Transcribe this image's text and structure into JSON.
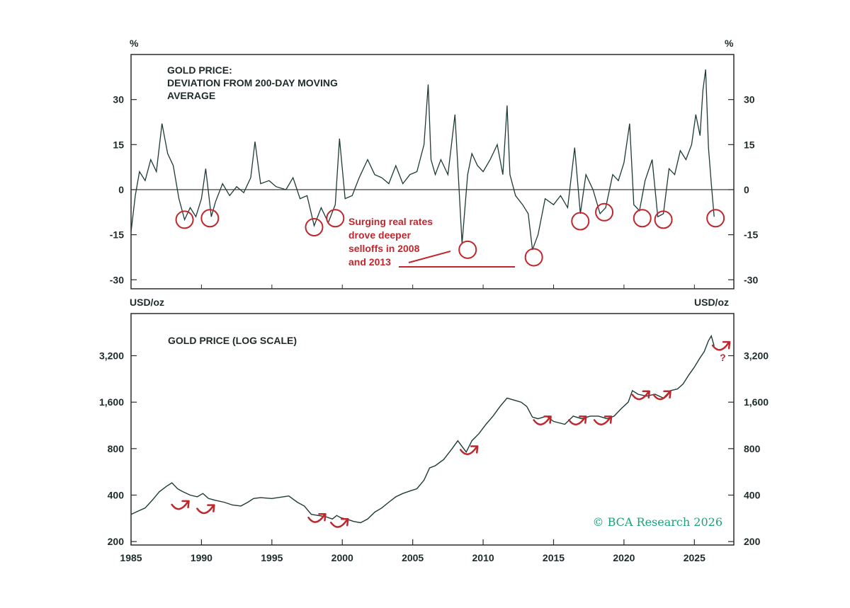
{
  "colors": {
    "line": "#1d3a36",
    "accent": "#c0272d",
    "credit": "#1aa37a",
    "axis": "#2b2b2b"
  },
  "chart_data": [
    {
      "type": "line",
      "title": "GOLD PRICE:\nDEVIATION FROM 200-DAY MOVING\nAVERAGE",
      "unit_left": "%",
      "unit_right": "%",
      "ylim": [
        -33,
        45
      ],
      "yticks": [
        30,
        15,
        0,
        -15,
        -30
      ],
      "ytick_labels": [
        "30",
        "15",
        "0",
        "-15",
        "-30"
      ],
      "zero_line": true,
      "x": [
        1985.0,
        1985.3,
        1985.6,
        1986.0,
        1986.4,
        1986.8,
        1987.2,
        1987.6,
        1988.0,
        1988.4,
        1988.8,
        1989.2,
        1989.6,
        1990.0,
        1990.3,
        1990.7,
        1991.0,
        1991.5,
        1992.0,
        1992.5,
        1993.0,
        1993.5,
        1993.8,
        1994.2,
        1994.8,
        1995.3,
        1996.0,
        1996.5,
        1997.0,
        1997.5,
        1998.0,
        1998.5,
        1999.0,
        1999.5,
        1999.8,
        2000.2,
        2000.7,
        2001.2,
        2001.8,
        2002.3,
        2002.8,
        2003.3,
        2003.8,
        2004.3,
        2004.8,
        2005.3,
        2005.8,
        2006.1,
        2006.3,
        2006.6,
        2007.0,
        2007.5,
        2008.0,
        2008.2,
        2008.5,
        2008.9,
        2009.2,
        2009.6,
        2010.0,
        2010.5,
        2011.0,
        2011.4,
        2011.7,
        2011.9,
        2012.3,
        2012.8,
        2013.2,
        2013.5,
        2013.9,
        2014.4,
        2015.0,
        2015.5,
        2016.0,
        2016.5,
        2016.9,
        2017.3,
        2017.8,
        2018.3,
        2018.7,
        2019.2,
        2019.6,
        2020.0,
        2020.4,
        2020.7,
        2021.1,
        2021.5,
        2022.0,
        2022.4,
        2022.8,
        2023.2,
        2023.6,
        2024.0,
        2024.4,
        2024.8,
        2025.1,
        2025.4,
        2025.6,
        2025.8,
        2026.0,
        2026.2,
        2026.4
      ],
      "values": [
        -14,
        -2,
        6,
        3,
        10,
        6,
        22,
        12,
        8,
        -3,
        -10,
        -6,
        -9,
        -3,
        7,
        -9,
        -4,
        2,
        -2,
        1,
        -1,
        4,
        16,
        2,
        3,
        1,
        0,
        4,
        -3,
        -2,
        -12,
        -6,
        -11,
        -5,
        17,
        -3,
        -2,
        4,
        10,
        5,
        4,
        2,
        8,
        2,
        5,
        6,
        15,
        35,
        10,
        5,
        10,
        5,
        25,
        8,
        -18,
        5,
        12,
        8,
        6,
        10,
        15,
        5,
        28,
        5,
        -2,
        -5,
        -8,
        -20,
        -15,
        -3,
        -5,
        -2,
        -6,
        14,
        -8,
        5,
        0,
        -8,
        -6,
        5,
        3,
        9,
        22,
        -5,
        -7,
        3,
        10,
        -9,
        -8,
        7,
        5,
        13,
        10,
        15,
        25,
        18,
        33,
        40,
        14,
        2,
        -9
      ],
      "annotation": {
        "text": [
          "Surging real rates",
          "drove deeper",
          "selloffs in 2008",
          "and 2013"
        ]
      },
      "circles": [
        {
          "x": 1988.8,
          "y": -10
        },
        {
          "x": 1990.6,
          "y": -9.5
        },
        {
          "x": 1998.0,
          "y": -12.5
        },
        {
          "x": 1999.5,
          "y": -9.5
        },
        {
          "x": 2008.9,
          "y": -20
        },
        {
          "x": 2013.6,
          "y": -22.5
        },
        {
          "x": 2016.9,
          "y": -10.5
        },
        {
          "x": 2018.6,
          "y": -7.5
        },
        {
          "x": 2021.3,
          "y": -9.5
        },
        {
          "x": 2022.8,
          "y": -10
        },
        {
          "x": 2026.5,
          "y": -9.5
        }
      ]
    },
    {
      "type": "line",
      "title": "GOLD PRICE (LOG SCALE)",
      "unit_left": "USD/oz",
      "unit_right": "USD/oz",
      "log_scale": true,
      "ylim": [
        190,
        6000
      ],
      "yticks": [
        3200,
        1600,
        800,
        400,
        200
      ],
      "ytick_labels": [
        "3,200",
        "1,600",
        "800",
        "400",
        "200"
      ],
      "x_range": [
        1985,
        2027.8
      ],
      "xticks": [
        1985,
        1990,
        1995,
        2000,
        2005,
        2010,
        2015,
        2020,
        2025
      ],
      "xtick_labels": [
        "1985",
        "1990",
        "1995",
        "2000",
        "2005",
        "2010",
        "2015",
        "2020",
        "2025"
      ],
      "x": [
        1985.0,
        1985.5,
        1986.0,
        1986.5,
        1987.0,
        1987.5,
        1987.9,
        1988.3,
        1988.7,
        1989.2,
        1989.7,
        1990.1,
        1990.5,
        1991.0,
        1991.6,
        1992.2,
        1992.8,
        1993.3,
        1993.7,
        1994.2,
        1995.0,
        1995.8,
        1996.2,
        1996.8,
        1997.3,
        1997.8,
        1998.3,
        1998.8,
        1999.3,
        1999.6,
        1999.9,
        2000.3,
        2000.8,
        2001.3,
        2001.8,
        2002.3,
        2002.8,
        2003.3,
        2003.8,
        2004.3,
        2004.8,
        2005.3,
        2005.8,
        2006.2,
        2006.6,
        2007.2,
        2007.8,
        2008.2,
        2008.8,
        2009.2,
        2009.7,
        2010.2,
        2010.7,
        2011.2,
        2011.7,
        2012.2,
        2012.7,
        2013.1,
        2013.5,
        2013.9,
        2014.5,
        2015.0,
        2015.8,
        2016.4,
        2017.0,
        2017.6,
        2018.2,
        2018.8,
        2019.3,
        2019.8,
        2020.3,
        2020.6,
        2021.0,
        2021.6,
        2022.2,
        2022.8,
        2023.3,
        2023.8,
        2024.2,
        2024.6,
        2025.0,
        2025.4,
        2025.7,
        2026.0,
        2026.2,
        2026.4
      ],
      "values": [
        300,
        315,
        330,
        370,
        420,
        455,
        480,
        440,
        420,
        400,
        390,
        410,
        380,
        370,
        360,
        345,
        340,
        360,
        380,
        385,
        380,
        390,
        395,
        360,
        340,
        300,
        295,
        290,
        280,
        295,
        285,
        280,
        270,
        265,
        280,
        310,
        330,
        360,
        390,
        410,
        425,
        440,
        500,
        600,
        620,
        680,
        800,
        900,
        760,
        900,
        1000,
        1150,
        1300,
        1500,
        1700,
        1650,
        1600,
        1500,
        1280,
        1250,
        1300,
        1200,
        1150,
        1300,
        1250,
        1300,
        1300,
        1250,
        1300,
        1450,
        1600,
        1900,
        1800,
        1750,
        1800,
        1700,
        1900,
        1950,
        2100,
        2400,
        2700,
        3100,
        3400,
        4000,
        4300,
        3700
      ],
      "arrows": [
        {
          "x": 1988.5,
          "y": 340
        },
        {
          "x": 1990.3,
          "y": 320
        },
        {
          "x": 1998.2,
          "y": 280
        },
        {
          "x": 1999.8,
          "y": 260
        },
        {
          "x": 2009.0,
          "y": 770
        },
        {
          "x": 2014.2,
          "y": 1200
        },
        {
          "x": 2016.7,
          "y": 1200
        },
        {
          "x": 2018.5,
          "y": 1200
        },
        {
          "x": 2021.2,
          "y": 1750
        },
        {
          "x": 2022.7,
          "y": 1750
        },
        {
          "x": 2026.9,
          "y": 3650
        }
      ],
      "question_mark": {
        "text": "?",
        "x": 2026.8,
        "y": 2950
      }
    }
  ],
  "credit": "© BCA Research 2026"
}
